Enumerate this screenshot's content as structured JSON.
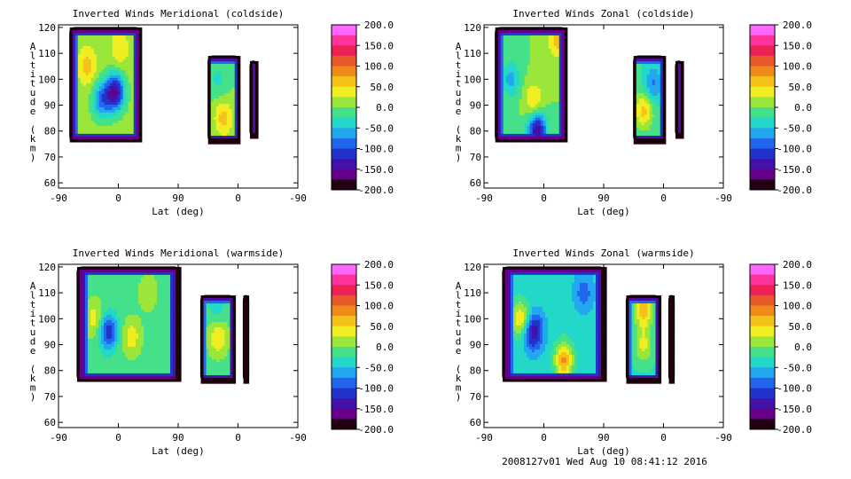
{
  "footer": "2008127v01 Wed Aug 10 08:41:12 2016",
  "colorbar": {
    "ticks": [
      "200.0",
      "150.0",
      "100.0",
      "50.0",
      "0.0",
      "-50.0",
      "-100.0",
      "-150.0",
      "-200.0"
    ],
    "min": -200,
    "max": 200,
    "colors": [
      "#ff66ff",
      "#ff3399",
      "#ee2255",
      "#e85a2a",
      "#f08a1a",
      "#f5c21a",
      "#f0ee22",
      "#9ae63a",
      "#44e08a",
      "#22d8c8",
      "#22a8ee",
      "#2266ee",
      "#2233cc",
      "#4411aa",
      "#660088",
      "#220011"
    ]
  },
  "chart_data": [
    {
      "type": "heatmap",
      "title": "Inverted Winds Meridional (coldside)",
      "xlabel": "Lat (deg)",
      "ylabel": "Altitude (km)",
      "ylim": [
        58,
        121
      ],
      "x_ticks": [
        "-90",
        "0",
        "90",
        "0",
        "-90"
      ],
      "y_ticks": [
        "60",
        "70",
        "80",
        "90",
        "100",
        "110",
        "120"
      ],
      "regions": [
        {
          "lat_range": [
            -73,
            33
          ],
          "alt_range": [
            76,
            120
          ],
          "base_value": 10,
          "peaks": [
            {
              "x": -47,
              "alt": 105,
              "value": 60
            },
            {
              "x": 2,
              "alt": 112,
              "value": 45
            },
            {
              "x": -25,
              "alt": 92,
              "value": -80
            },
            {
              "x": -5,
              "alt": 95,
              "value": -150
            }
          ]
        },
        {
          "lat_range": [
            135,
            182
          ],
          "alt_range": [
            76,
            109
          ],
          "base_value": 0,
          "peaks": [
            {
              "x": 158,
              "alt": 85,
              "value": 60
            },
            {
              "x": 150,
              "alt": 100,
              "value": -30
            }
          ]
        },
        {
          "lat_range": [
            198,
            208
          ],
          "alt_range": [
            78,
            107
          ],
          "base_value": -140,
          "peaks": []
        }
      ]
    },
    {
      "type": "heatmap",
      "title": "Inverted Winds Zonal (coldside)",
      "xlabel": "Lat (deg)",
      "ylabel": "Altitude (km)",
      "ylim": [
        58,
        121
      ],
      "x_ticks": [
        "-90",
        "0",
        "90",
        "0",
        "-90"
      ],
      "y_ticks": [
        "60",
        "70",
        "80",
        "90",
        "100",
        "110",
        "120"
      ],
      "regions": [
        {
          "lat_range": [
            -73,
            33
          ],
          "alt_range": [
            76,
            120
          ],
          "base_value": 0,
          "peaks": [
            {
              "x": 20,
              "alt": 115,
              "value": 60
            },
            {
              "x": -15,
              "alt": 92,
              "value": 50
            },
            {
              "x": -50,
              "alt": 100,
              "value": -60
            },
            {
              "x": -10,
              "alt": 80,
              "value": -150
            }
          ]
        },
        {
          "lat_range": [
            135,
            182
          ],
          "alt_range": [
            76,
            109
          ],
          "base_value": -20,
          "peaks": [
            {
              "x": 150,
              "alt": 88,
              "value": 60
            },
            {
              "x": 165,
              "alt": 98,
              "value": -80
            }
          ]
        },
        {
          "lat_range": [
            198,
            208
          ],
          "alt_range": [
            78,
            107
          ],
          "base_value": -140,
          "peaks": []
        }
      ]
    },
    {
      "type": "heatmap",
      "title": "Inverted Winds Meridional (warmside)",
      "xlabel": "Lat (deg)",
      "ylabel": "Altitude (km)",
      "ylim": [
        58,
        121
      ],
      "x_ticks": [
        "-90",
        "0",
        "90",
        "0",
        "-90"
      ],
      "y_ticks": [
        "60",
        "70",
        "80",
        "90",
        "100",
        "110",
        "120"
      ],
      "regions": [
        {
          "lat_range": [
            -62,
            92
          ],
          "alt_range": [
            76,
            120
          ],
          "base_value": -10,
          "peaks": [
            {
              "x": -35,
              "alt": 100,
              "value": 40
            },
            {
              "x": 20,
              "alt": 93,
              "value": 40
            },
            {
              "x": -15,
              "alt": 95,
              "value": -120
            },
            {
              "x": 45,
              "alt": 110,
              "value": 20
            }
          ]
        },
        {
          "lat_range": [
            124,
            174
          ],
          "alt_range": [
            76,
            109
          ],
          "base_value": -10,
          "peaks": [
            {
              "x": 150,
              "alt": 93,
              "value": 50
            },
            {
              "x": 148,
              "alt": 104,
              "value": -40
            }
          ]
        },
        {
          "lat_range": [
            188,
            196
          ],
          "alt_range": [
            76,
            109
          ],
          "base_value": -140,
          "peaks": []
        }
      ]
    },
    {
      "type": "heatmap",
      "title": "Inverted Winds Zonal (warmside)",
      "xlabel": "Lat (deg)",
      "ylabel": "Altitude (km)",
      "ylim": [
        58,
        121
      ],
      "x_ticks": [
        "-90",
        "0",
        "90",
        "0",
        "-90"
      ],
      "y_ticks": [
        "60",
        "70",
        "80",
        "90",
        "100",
        "110",
        "120"
      ],
      "regions": [
        {
          "lat_range": [
            -62,
            92
          ],
          "alt_range": [
            76,
            120
          ],
          "base_value": -40,
          "peaks": [
            {
              "x": 30,
              "alt": 84,
              "value": 80
            },
            {
              "x": -35,
              "alt": 100,
              "value": 50
            },
            {
              "x": -15,
              "alt": 95,
              "value": -150
            },
            {
              "x": 60,
              "alt": 110,
              "value": -90
            }
          ]
        },
        {
          "lat_range": [
            124,
            174
          ],
          "alt_range": [
            76,
            109
          ],
          "base_value": -30,
          "peaks": [
            {
              "x": 150,
              "alt": 104,
              "value": 70
            },
            {
              "x": 150,
              "alt": 90,
              "value": 30
            }
          ]
        },
        {
          "lat_range": [
            188,
            196
          ],
          "alt_range": [
            76,
            109
          ],
          "base_value": -140,
          "peaks": []
        }
      ]
    }
  ]
}
